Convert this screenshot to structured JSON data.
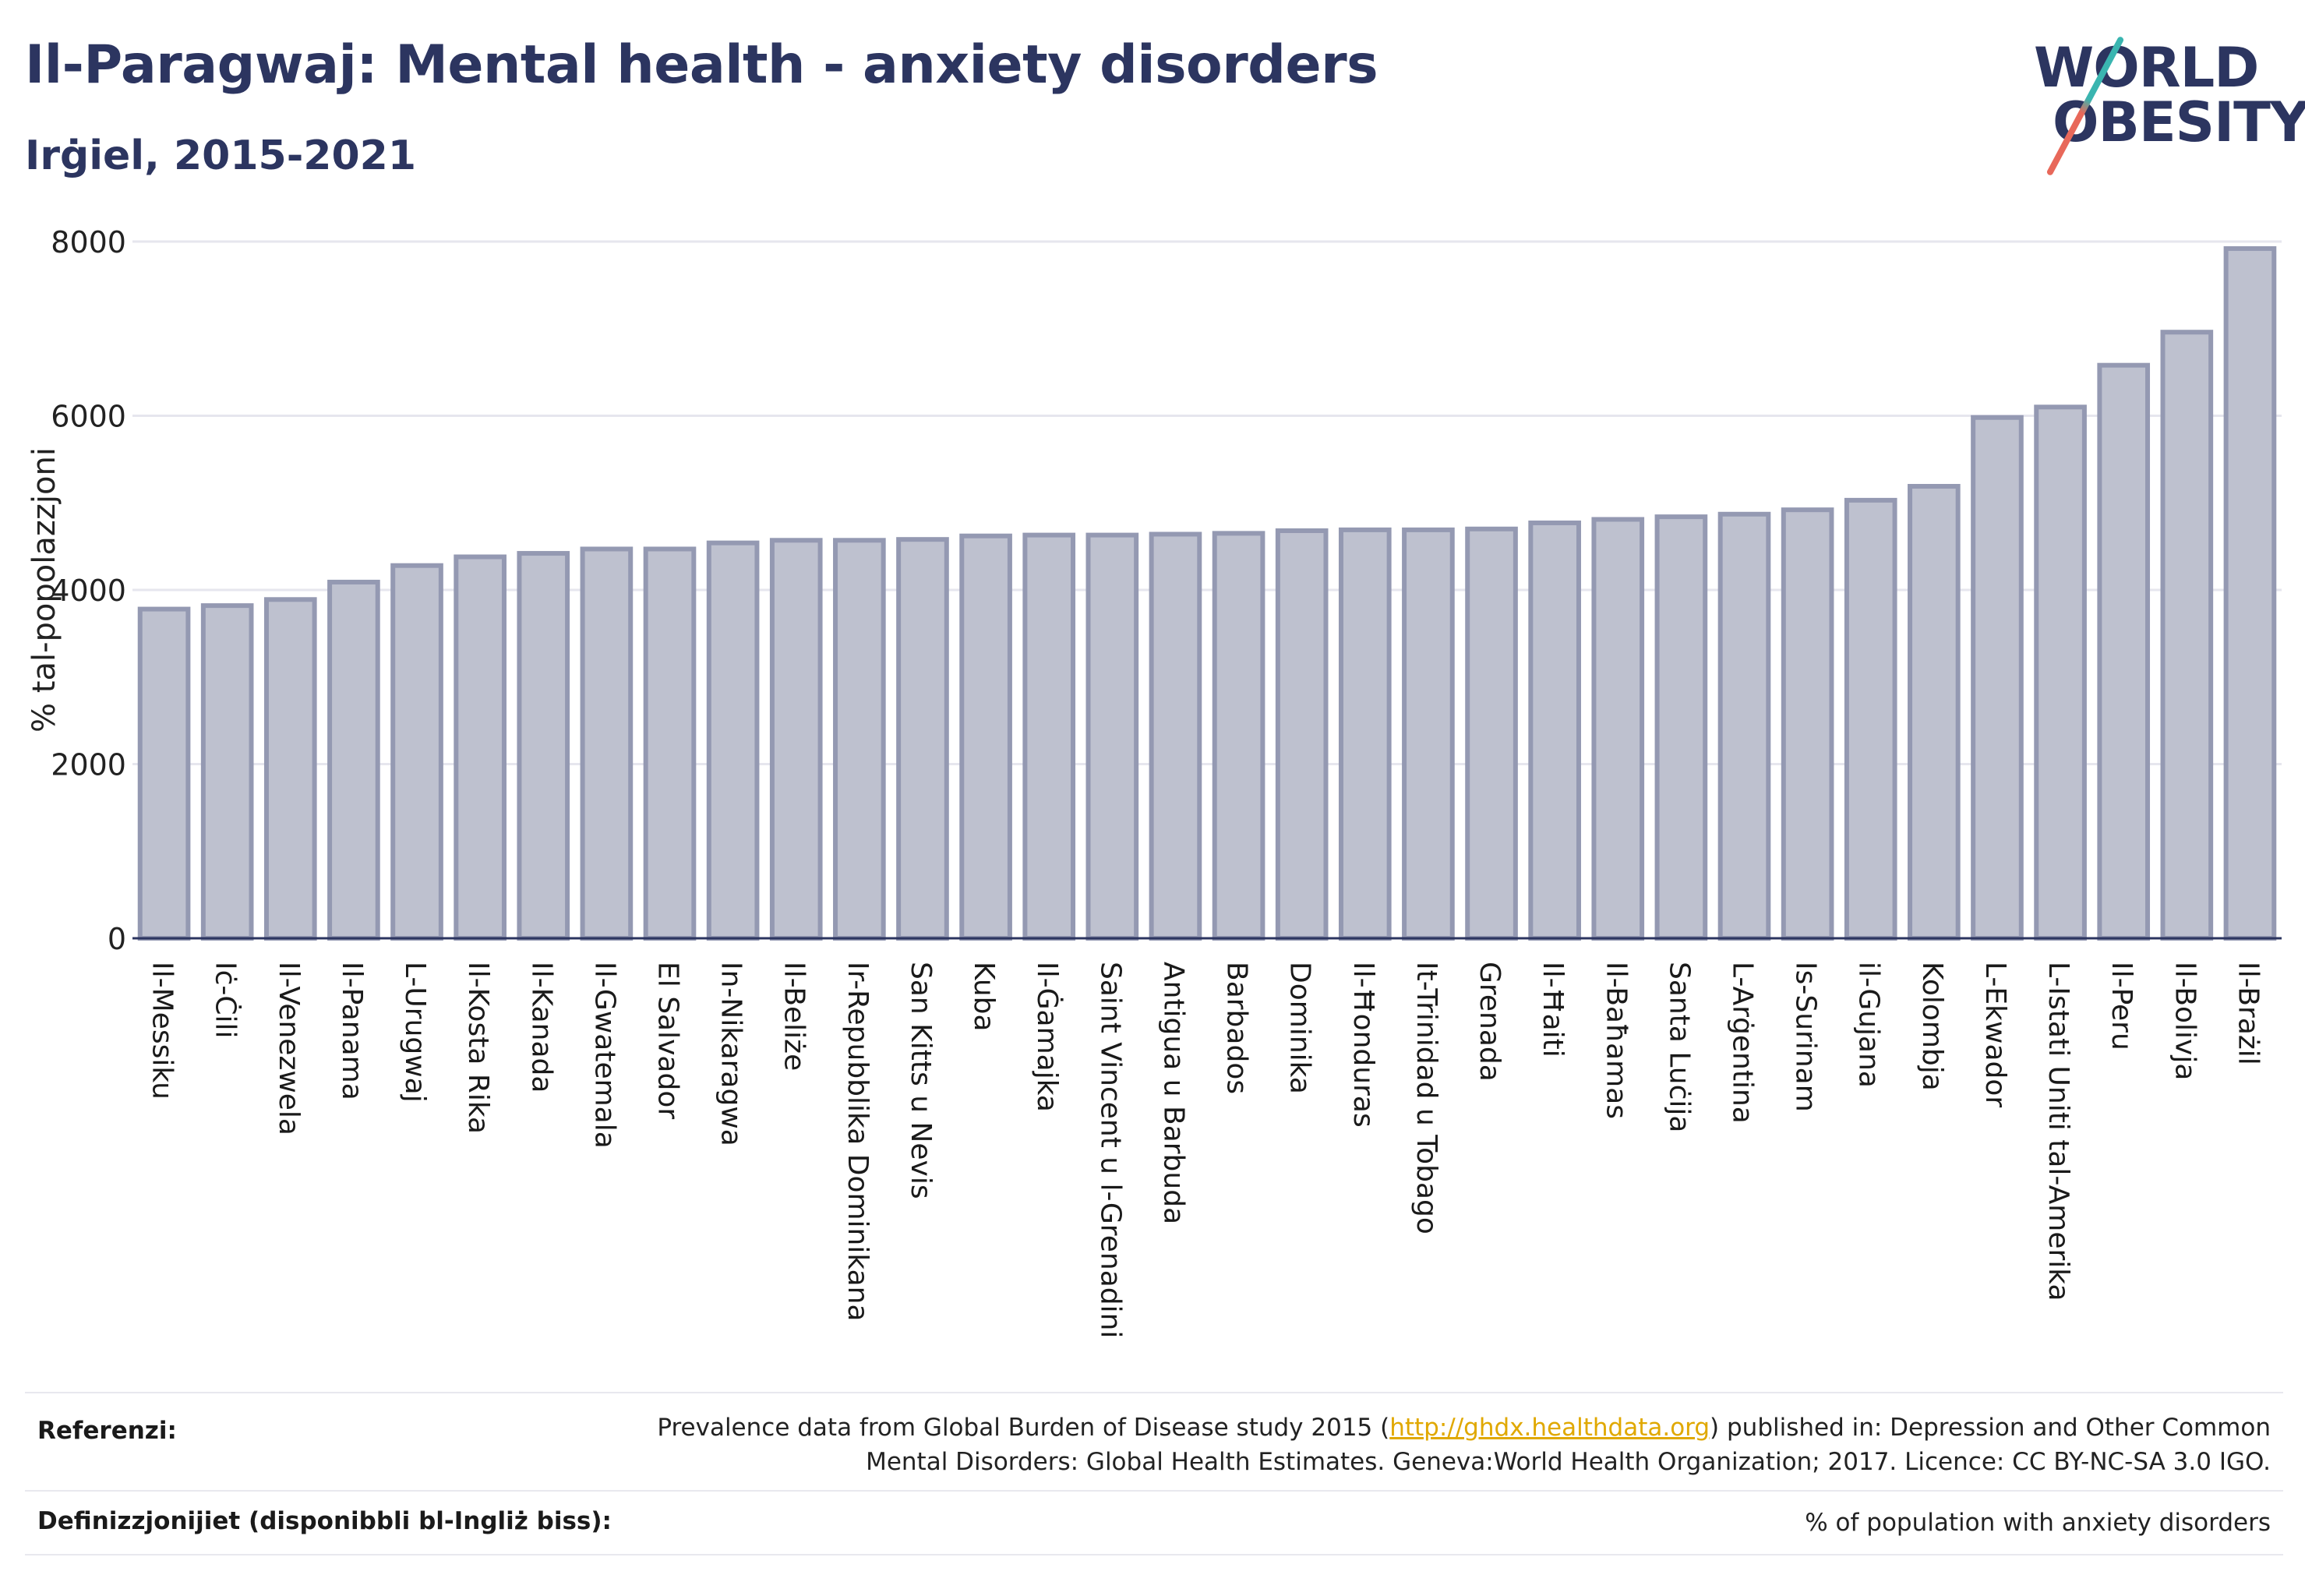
{
  "title": "Il-Paragwaj: Mental health - anxiety disorders",
  "subtitle": "Irġiel, 2015-2021",
  "logo": {
    "line1": "WORLD",
    "line2": "OBESITY"
  },
  "colors": {
    "bar_fill": "#bec1cf",
    "bar_stroke": "#9499b2",
    "text": "#2c3560",
    "axis": "#2c3560",
    "grid": "#e6e6ee"
  },
  "chart_data": {
    "type": "bar",
    "ylabel": "% tal-popolazzjoni",
    "xlabel": "",
    "ylim": [
      0,
      8000
    ],
    "yticks": [
      0,
      2000,
      4000,
      6000,
      8000
    ],
    "grid": true,
    "categories": [
      "Il-Messiku",
      "Iċ-Ċili",
      "Il-Venezwela",
      "Il-Panama",
      "L-Urugwaj",
      "Il-Kosta Rika",
      "Il-Kanada",
      "Il-Gwatemala",
      "El Salvador",
      "In-Nikaragwa",
      "Il-Beliże",
      "Ir-Repubblika Dominikana",
      "San Kitts u Nevis",
      "Kuba",
      "Il-Ġamajka",
      "Saint Vincent u l-Grenadini",
      "Antigua u Barbuda",
      "Barbados",
      "Dominika",
      "Il-Ħonduras",
      "It-Trinidad u Tobago",
      "Grenada",
      "Il-Ħaiti",
      "Il-Baħamas",
      "Santa Luċija",
      "L-Arġentina",
      "Is-Surinam",
      "il-Gujana",
      "Kolombja",
      "L-Ekwador",
      "L-Istati Uniti tal-Amerika",
      "Il-Peru",
      "Il-Bolivja",
      "Il-Brażil"
    ],
    "values": [
      3780,
      3820,
      3890,
      4090,
      4280,
      4380,
      4420,
      4470,
      4470,
      4540,
      4570,
      4570,
      4580,
      4620,
      4630,
      4630,
      4640,
      4650,
      4680,
      4690,
      4690,
      4700,
      4770,
      4810,
      4840,
      4870,
      4920,
      5030,
      5190,
      5980,
      6100,
      6580,
      6960,
      7920
    ]
  },
  "footer": {
    "references_label": "Referenzi:",
    "references_pre": "Prevalence data from Global Burden of Disease study 2015 (",
    "references_link": "http://ghdx.healthdata.org",
    "references_post": ") published in: Depression and Other Common",
    "references_line2": "Mental Disorders: Global Health Estimates. Geneva:World Health Organization; 2017. Licence: CC BY-NC-SA 3.0 IGO.",
    "definitions_label": "Definizzjonijiet (disponibbli bl-Ingliż biss):",
    "definitions_value": "% of population with anxiety disorders"
  }
}
